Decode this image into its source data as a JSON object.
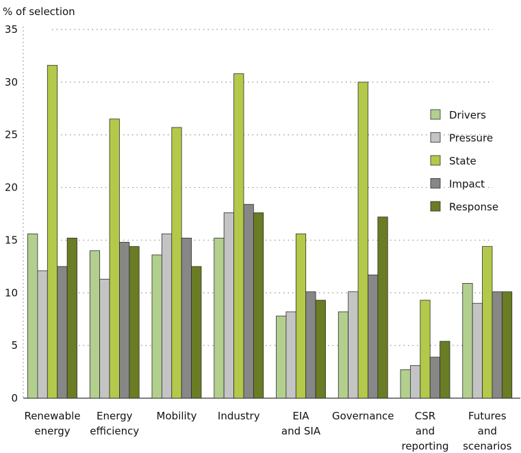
{
  "chart_data": {
    "type": "bar",
    "ylabel": "% of selection",
    "ylim": [
      0,
      35
    ],
    "yticks": [
      0,
      5,
      10,
      15,
      20,
      25,
      30,
      35
    ],
    "grid": "dotted horizontal",
    "legend_position": "right",
    "categories": [
      [
        "Renewable",
        "energy"
      ],
      [
        "Energy",
        "efficiency"
      ],
      [
        "Mobility"
      ],
      [
        "Industry"
      ],
      [
        "EIA",
        "and SIA"
      ],
      [
        "Governance"
      ],
      [
        "CSR",
        "and",
        "reporting"
      ],
      [
        "Futures",
        "and",
        "scenarios"
      ]
    ],
    "series": [
      {
        "name": "Drivers",
        "color": "#b2cf8e",
        "values": [
          15.6,
          14.0,
          13.6,
          15.2,
          7.8,
          8.2,
          2.7,
          10.9
        ]
      },
      {
        "name": "Pressure",
        "color": "#c4c4c4",
        "values": [
          12.1,
          11.3,
          15.6,
          17.6,
          8.2,
          10.1,
          3.1,
          9.0
        ]
      },
      {
        "name": "State",
        "color": "#b3c94a",
        "values": [
          31.6,
          26.5,
          25.7,
          30.8,
          15.6,
          30.0,
          9.3,
          14.4
        ]
      },
      {
        "name": "Impact",
        "color": "#878787",
        "values": [
          12.5,
          14.8,
          15.2,
          18.4,
          10.1,
          11.7,
          3.9,
          10.1
        ]
      },
      {
        "name": "Response",
        "color": "#6a7c24",
        "values": [
          15.2,
          14.4,
          12.5,
          17.6,
          9.3,
          17.2,
          5.4,
          10.1
        ]
      }
    ]
  }
}
